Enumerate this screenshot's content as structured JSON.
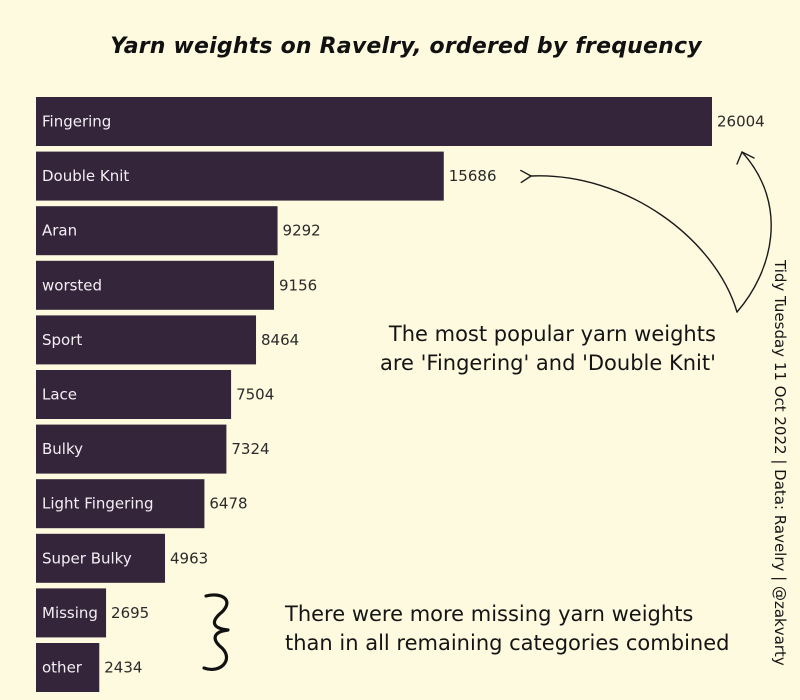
{
  "chart_data": {
    "type": "bar",
    "orientation": "horizontal",
    "title": "Yarn weights on Ravelry, ordered by frequency",
    "categories": [
      "Fingering",
      "Double Knit",
      "Aran",
      "worsted",
      "Sport",
      "Lace",
      "Bulky",
      "Light Fingering",
      "Super Bulky",
      "Missing",
      "other"
    ],
    "values": [
      26004,
      15686,
      9292,
      9156,
      8464,
      7504,
      7324,
      6478,
      4963,
      2695,
      2434
    ],
    "value_labels": [
      "26004",
      "15686",
      "9292",
      "9156",
      "8464",
      "7504",
      "7324",
      "6478",
      "4963",
      "2695",
      "2434"
    ],
    "xlabel": "",
    "ylabel": "",
    "grid": false,
    "legend": "none",
    "bar_color": "#35253a",
    "background_color": "#fdfadf"
  },
  "annotations": {
    "popular": [
      "The most popular yarn weights",
      "are 'Fingering' and 'Double Knit'"
    ],
    "missing": [
      "There were more missing yarn weights",
      "than in all remaining categories combined"
    ]
  },
  "caption": "Tidy Tuesday 11 Oct 2022 | Data: Ravelry | @zakvarty"
}
